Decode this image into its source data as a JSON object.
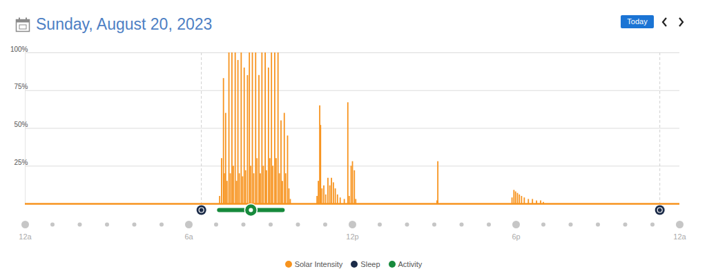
{
  "chart_data": {
    "type": "bar",
    "title": "Sunday, August 20, 2023",
    "button": "Today",
    "x": [
      7.13,
      7.2,
      7.27,
      7.3,
      7.35,
      7.4,
      7.47,
      7.52,
      7.58,
      7.63,
      7.7,
      7.75,
      7.8,
      7.85,
      7.92,
      7.97,
      8.03,
      8.08,
      8.15,
      8.22,
      8.27,
      8.33,
      8.38,
      8.45,
      8.5,
      8.57,
      8.62,
      8.68,
      8.73,
      8.8,
      8.85,
      8.92,
      8.97,
      9.03,
      9.08,
      9.15,
      9.2,
      9.27,
      9.32,
      9.38,
      9.43,
      9.5,
      9.55,
      9.62,
      9.67,
      9.72,
      10.7,
      10.75,
      10.8,
      10.83,
      10.88,
      10.95,
      11.02,
      11.1,
      11.17,
      11.23,
      11.3,
      11.37,
      11.45,
      11.55,
      11.7,
      11.83,
      11.88,
      11.95,
      12.0,
      12.07,
      12.12,
      15.1,
      15.13,
      17.85,
      17.92,
      17.98,
      18.05,
      18.12,
      18.2,
      18.3,
      18.45,
      18.6,
      18.75,
      18.9,
      19.0
    ],
    "series": [
      {
        "name": "Solar Intensity",
        "color": "#f7931e",
        "values": [
          5,
          30,
          83,
          20,
          60,
          15,
          100,
          20,
          100,
          25,
          100,
          15,
          95,
          20,
          100,
          18,
          90,
          22,
          85,
          100,
          25,
          100,
          20,
          100,
          30,
          85,
          20,
          100,
          25,
          100,
          22,
          90,
          30,
          100,
          25,
          100,
          30,
          100,
          20,
          55,
          15,
          60,
          20,
          45,
          10,
          3,
          5,
          15,
          65,
          52,
          10,
          12,
          6,
          17,
          12,
          17,
          14,
          10,
          6,
          4,
          3,
          67,
          5,
          25,
          28,
          22,
          3,
          2,
          28,
          4,
          9,
          8,
          7,
          6,
          5,
          4,
          3,
          3,
          2,
          2,
          1
        ]
      }
    ],
    "xlim": [
      0,
      24
    ],
    "xticks": [
      {
        "value": 0,
        "label": "12a"
      },
      {
        "value": 6,
        "label": "6a"
      },
      {
        "value": 12,
        "label": "12p"
      },
      {
        "value": 18,
        "label": "6p"
      },
      {
        "value": 24,
        "label": "12a"
      }
    ],
    "x_minor_ticks": [
      1,
      2,
      3,
      4,
      5,
      7,
      8,
      9,
      10,
      11,
      13,
      14,
      15,
      16,
      17,
      19,
      20,
      21,
      22,
      23
    ],
    "ylim": [
      0,
      100
    ],
    "yticks": [
      {
        "value": 25,
        "label": "25%"
      },
      {
        "value": 50,
        "label": "50%"
      },
      {
        "value": 75,
        "label": "75%"
      },
      {
        "value": 100,
        "label": "100%"
      }
    ],
    "grid": true,
    "sleep": {
      "name": "Sleep",
      "color": "#1b2b48",
      "times": [
        6.46,
        23.27
      ]
    },
    "activity": {
      "name": "Activity",
      "color": "#178a3c",
      "start": 7.11,
      "end": 9.44
    },
    "legend": "bottom"
  }
}
